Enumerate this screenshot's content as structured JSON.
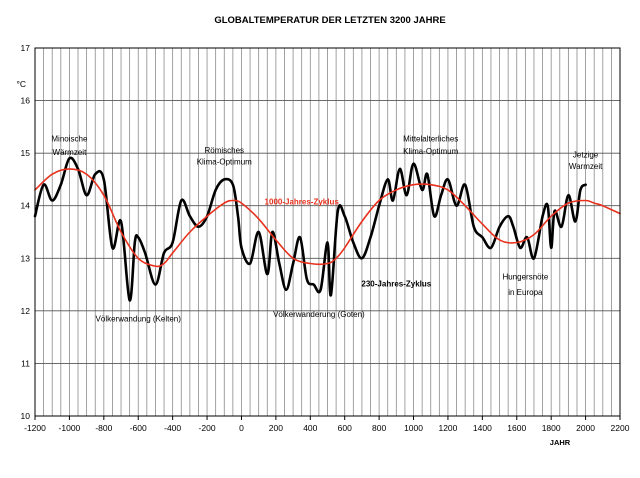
{
  "chart_data": {
    "type": "line",
    "title": "GLOBALTEMPERATUR DER LETZTEN 3200 JAHRE",
    "xlabel": "JAHR",
    "ylabel": "°C",
    "xlim": [
      -1200,
      2200
    ],
    "ylim": [
      10,
      17
    ],
    "x_ticks": [
      -1200,
      -1000,
      -800,
      -600,
      -400,
      -200,
      0,
      200,
      400,
      600,
      800,
      1000,
      1200,
      1400,
      1600,
      1800,
      2000,
      2200
    ],
    "y_ticks": [
      10,
      11,
      12,
      13,
      14,
      15,
      16,
      17
    ],
    "x_grid_step": 50,
    "grid": true,
    "series": [
      {
        "name": "230-Jahres-Zyklus",
        "color": "#000000",
        "x": [
          -1200,
          -1150,
          -1100,
          -1050,
          -1000,
          -950,
          -900,
          -850,
          -800,
          -750,
          -700,
          -650,
          -620,
          -600,
          -560,
          -500,
          -450,
          -400,
          -350,
          -300,
          -250,
          -200,
          -150,
          -100,
          -50,
          -20,
          0,
          50,
          100,
          150,
          180,
          220,
          260,
          300,
          340,
          380,
          420,
          460,
          500,
          520,
          560,
          600,
          650,
          700,
          750,
          800,
          850,
          880,
          920,
          960,
          1000,
          1050,
          1080,
          1120,
          1160,
          1200,
          1250,
          1300,
          1350,
          1400,
          1450,
          1500,
          1550,
          1580,
          1620,
          1660,
          1700,
          1750,
          1780,
          1800,
          1820,
          1860,
          1900,
          1940,
          1970,
          2000
        ],
        "values": [
          13.8,
          14.4,
          14.1,
          14.4,
          14.9,
          14.7,
          14.2,
          14.6,
          14.5,
          13.2,
          13.7,
          12.2,
          13.3,
          13.4,
          13.1,
          12.5,
          13.1,
          13.3,
          14.1,
          13.8,
          13.6,
          13.8,
          14.3,
          14.5,
          14.4,
          13.8,
          13.2,
          12.9,
          13.5,
          12.7,
          13.5,
          12.9,
          12.4,
          12.9,
          13.4,
          12.6,
          12.5,
          12.4,
          13.3,
          12.3,
          13.9,
          13.8,
          13.3,
          13.0,
          13.4,
          14.0,
          14.5,
          14.1,
          14.7,
          14.2,
          14.8,
          14.3,
          14.6,
          13.8,
          14.2,
          14.5,
          14.0,
          14.4,
          13.6,
          13.4,
          13.2,
          13.6,
          13.8,
          13.6,
          13.2,
          13.4,
          13.0,
          13.8,
          14.0,
          13.2,
          13.9,
          13.6,
          14.2,
          13.7,
          14.3,
          14.4
        ]
      },
      {
        "name": "1000-Jahres-Zyklus",
        "color": "#e8301c",
        "x": [
          -1200,
          -1100,
          -1000,
          -900,
          -800,
          -700,
          -600,
          -500,
          -450,
          -400,
          -300,
          -200,
          -100,
          -50,
          0,
          100,
          200,
          300,
          400,
          500,
          550,
          600,
          700,
          800,
          900,
          1000,
          1100,
          1200,
          1300,
          1400,
          1500,
          1600,
          1700,
          1800,
          1900,
          2000,
          2050,
          2100,
          2200
        ],
        "values": [
          14.3,
          14.6,
          14.7,
          14.6,
          14.2,
          13.5,
          13.0,
          12.85,
          12.9,
          13.1,
          13.5,
          13.8,
          14.05,
          14.1,
          14.05,
          13.75,
          13.35,
          13.0,
          12.9,
          12.9,
          13.0,
          13.2,
          13.7,
          14.1,
          14.3,
          14.4,
          14.4,
          14.3,
          14.0,
          13.65,
          13.35,
          13.3,
          13.45,
          13.8,
          14.05,
          14.1,
          14.05,
          14.0,
          13.85
        ]
      }
    ],
    "annotations": [
      {
        "text": "Minoische",
        "x": -1000,
        "y": 15.22
      },
      {
        "text": "Wärmzeit",
        "x": -1000,
        "y": 14.96
      },
      {
        "text": "Römisches",
        "x": -100,
        "y": 15.0
      },
      {
        "text": "Klima-Optimum",
        "x": -100,
        "y": 14.78
      },
      {
        "text": "Mittelalterliches",
        "x": 1100,
        "y": 15.22
      },
      {
        "text": "Klima-Optimum",
        "x": 1100,
        "y": 14.98
      },
      {
        "text": "Jetzige",
        "x": 2000,
        "y": 14.92
      },
      {
        "text": "Warmzeit",
        "x": 2000,
        "y": 14.7
      },
      {
        "text": "Völkerwandung (Kelten)",
        "x": -600,
        "y": 11.8
      },
      {
        "text": "Völkerwanderung (Goten)",
        "x": 450,
        "y": 11.88
      },
      {
        "text": "Hungersnöte",
        "x": 1650,
        "y": 12.6
      },
      {
        "text": "in Europa",
        "x": 1650,
        "y": 12.3
      }
    ],
    "series_labels": [
      {
        "text": "1000-Jahres-Zyklus",
        "x": 350,
        "y": 14.02
      },
      {
        "text": "230-Jahres-Zyklus",
        "x": 900,
        "y": 12.46
      }
    ]
  }
}
